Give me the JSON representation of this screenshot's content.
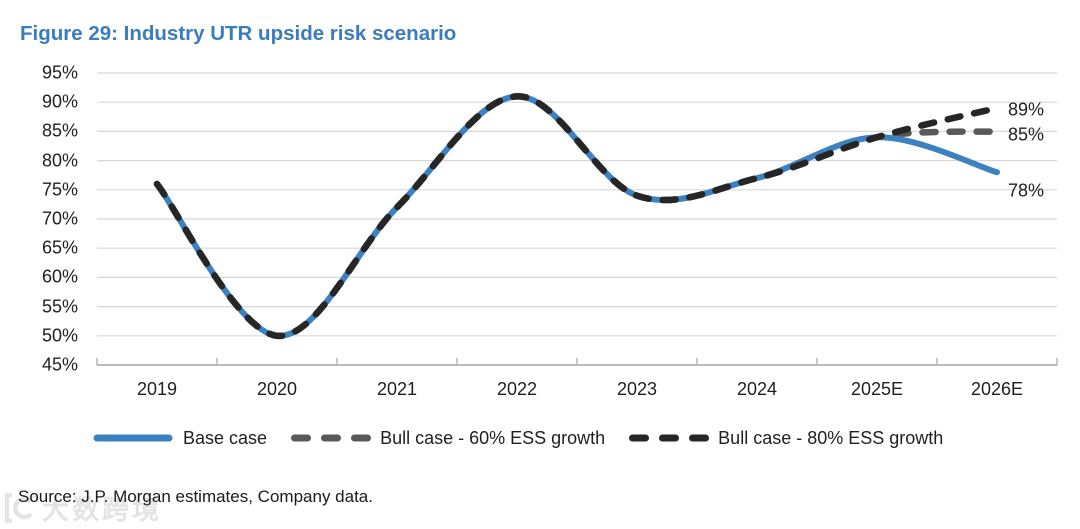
{
  "figure": {
    "title": "Figure 29: Industry UTR upside risk scenario",
    "source": "Source: J.P. Morgan estimates, Company data.",
    "watermark": "大数跨境"
  },
  "colors": {
    "title": "#3B7CBF",
    "grid": "#D8D8D8",
    "axis": "#A6A6A6",
    "text": "#1F1F1F",
    "base_case": "#3E81C0",
    "bull_60": "#595959",
    "bull_80": "#262626"
  },
  "chart_data": {
    "type": "line",
    "title": "Figure 29: Industry UTR upside risk scenario",
    "categories": [
      "2019",
      "2020",
      "2021",
      "2022",
      "2023",
      "2024",
      "2025E",
      "2026E"
    ],
    "y_ticks": [
      "95%",
      "90%",
      "85%",
      "80%",
      "75%",
      "70%",
      "65%",
      "60%",
      "55%",
      "50%",
      "45%"
    ],
    "ylim": [
      45,
      95
    ],
    "y_step": 5,
    "y_unit": "%",
    "grid": true,
    "legend_position": "bottom",
    "series": [
      {
        "name": "Base case",
        "style": "solid",
        "color": "#3E81C0",
        "values": [
          76,
          50,
          72,
          91,
          74,
          77,
          84,
          78
        ],
        "end_label": "78%"
      },
      {
        "name": "Bull case - 60% ESS growth",
        "style": "dashed",
        "color": "#595959",
        "values": [
          76,
          50,
          72,
          91,
          74,
          77,
          84,
          85
        ],
        "end_label": "85%"
      },
      {
        "name": "Bull case - 80% ESS growth",
        "style": "dashed",
        "color": "#262626",
        "values": [
          76,
          50,
          72,
          91,
          74,
          77,
          84,
          89
        ],
        "end_label": "89%"
      }
    ]
  }
}
